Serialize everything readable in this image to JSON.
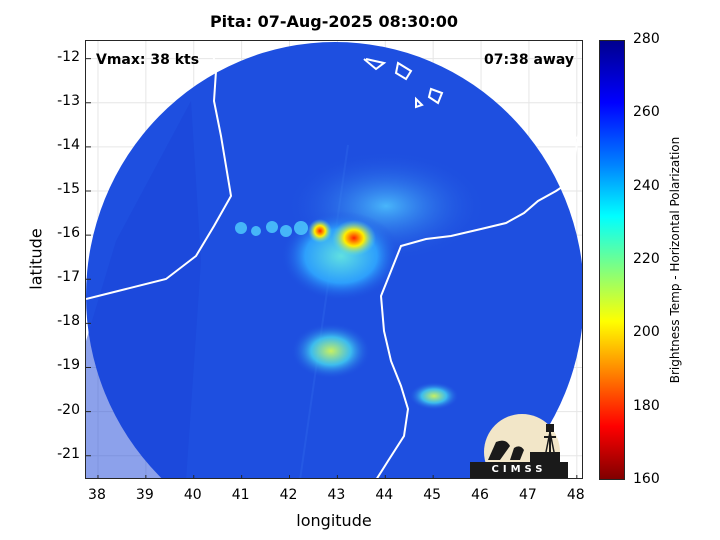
{
  "title": "Pita: 07-Aug-2025 08:30:00",
  "vmax": "Vmax: 38 kts",
  "away": "07:38 away",
  "xlabel": "longitude",
  "ylabel": "latitude",
  "xticks": [
    "38",
    "39",
    "40",
    "41",
    "42",
    "43",
    "44",
    "45",
    "46",
    "47",
    "48"
  ],
  "yticks": [
    "-12",
    "-13",
    "-14",
    "-15",
    "-16",
    "-17",
    "-18",
    "-19",
    "-20",
    "-21"
  ],
  "colorbar": {
    "label": "Brightness Temp - Horizontal Polarization",
    "ticks": [
      "280",
      "260",
      "240",
      "220",
      "200",
      "180",
      "160"
    ],
    "min": 160,
    "max": 280
  },
  "logo": {
    "text": "CIMSS"
  },
  "map": {
    "lon_range": [
      37.75,
      48.15
    ],
    "lat_range": [
      -21.55,
      -11.6
    ],
    "colors": {
      "background": "#1e4fe0",
      "ocean_dark": "#1a3fd0",
      "warm_low": "#30b0ff",
      "warm_mid": "#60e0e0",
      "warm_high": "#ffee00",
      "hot": "#ff2000",
      "coast": "#ffffff"
    }
  }
}
